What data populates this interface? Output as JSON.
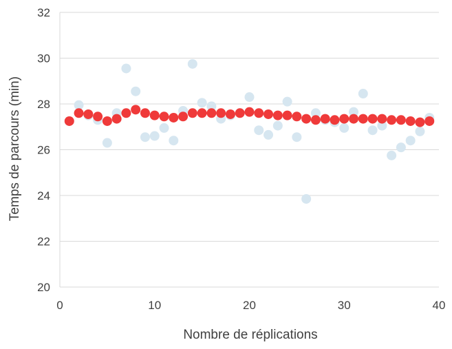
{
  "chart_data": {
    "type": "scatter",
    "xlabel": "Nombre de réplications",
    "ylabel": "Temps de parcours (min)",
    "xlim": [
      0,
      40
    ],
    "ylim": [
      20,
      32
    ],
    "x_ticks": [
      0,
      10,
      20,
      30,
      40
    ],
    "y_ticks": [
      20,
      22,
      24,
      26,
      28,
      30,
      32
    ],
    "x_tick_labels": [
      "0",
      "10",
      "20",
      "30",
      "40"
    ],
    "y_tick_labels": [
      "20",
      "22",
      "24",
      "26",
      "28",
      "30",
      "32"
    ],
    "grid": "horizontal",
    "legend": "none",
    "series": [
      {
        "color": "#d6e6f0",
        "points": [
          [
            1,
            27.25
          ],
          [
            2,
            27.95
          ],
          [
            3,
            27.5
          ],
          [
            4,
            27.3
          ],
          [
            5,
            26.3
          ],
          [
            6,
            27.6
          ],
          [
            7,
            29.55
          ],
          [
            8,
            28.55
          ],
          [
            9,
            26.55
          ],
          [
            10,
            26.6
          ],
          [
            11,
            26.95
          ],
          [
            12,
            26.4
          ],
          [
            13,
            27.7
          ],
          [
            14,
            29.75
          ],
          [
            15,
            28.05
          ],
          [
            16,
            27.9
          ],
          [
            17,
            27.35
          ],
          [
            18,
            27.5
          ],
          [
            19,
            27.6
          ],
          [
            20,
            28.3
          ],
          [
            21,
            26.85
          ],
          [
            22,
            26.65
          ],
          [
            23,
            27.05
          ],
          [
            24,
            28.1
          ],
          [
            25,
            26.55
          ],
          [
            26,
            23.85
          ],
          [
            27,
            27.6
          ],
          [
            28,
            27.3
          ],
          [
            29,
            27.2
          ],
          [
            30,
            26.95
          ],
          [
            31,
            27.65
          ],
          [
            32,
            28.45
          ],
          [
            33,
            26.85
          ],
          [
            34,
            27.05
          ],
          [
            35,
            25.75
          ],
          [
            36,
            26.1
          ],
          [
            37,
            26.4
          ],
          [
            38,
            26.8
          ],
          [
            39,
            27.4
          ]
        ]
      },
      {
        "color": "#ef3a3a",
        "points": [
          [
            1,
            27.25
          ],
          [
            2,
            27.6
          ],
          [
            3,
            27.55
          ],
          [
            4,
            27.45
          ],
          [
            5,
            27.25
          ],
          [
            6,
            27.35
          ],
          [
            7,
            27.6
          ],
          [
            8,
            27.75
          ],
          [
            9,
            27.6
          ],
          [
            10,
            27.5
          ],
          [
            11,
            27.45
          ],
          [
            12,
            27.4
          ],
          [
            13,
            27.45
          ],
          [
            14,
            27.6
          ],
          [
            15,
            27.6
          ],
          [
            16,
            27.6
          ],
          [
            17,
            27.6
          ],
          [
            18,
            27.55
          ],
          [
            19,
            27.6
          ],
          [
            20,
            27.65
          ],
          [
            21,
            27.6
          ],
          [
            22,
            27.55
          ],
          [
            23,
            27.5
          ],
          [
            24,
            27.5
          ],
          [
            25,
            27.45
          ],
          [
            26,
            27.35
          ],
          [
            27,
            27.3
          ],
          [
            28,
            27.35
          ],
          [
            29,
            27.3
          ],
          [
            30,
            27.35
          ],
          [
            31,
            27.35
          ],
          [
            32,
            27.35
          ],
          [
            33,
            27.35
          ],
          [
            34,
            27.35
          ],
          [
            35,
            27.3
          ],
          [
            36,
            27.3
          ],
          [
            37,
            27.25
          ],
          [
            38,
            27.2
          ],
          [
            39,
            27.25
          ]
        ]
      }
    ]
  }
}
